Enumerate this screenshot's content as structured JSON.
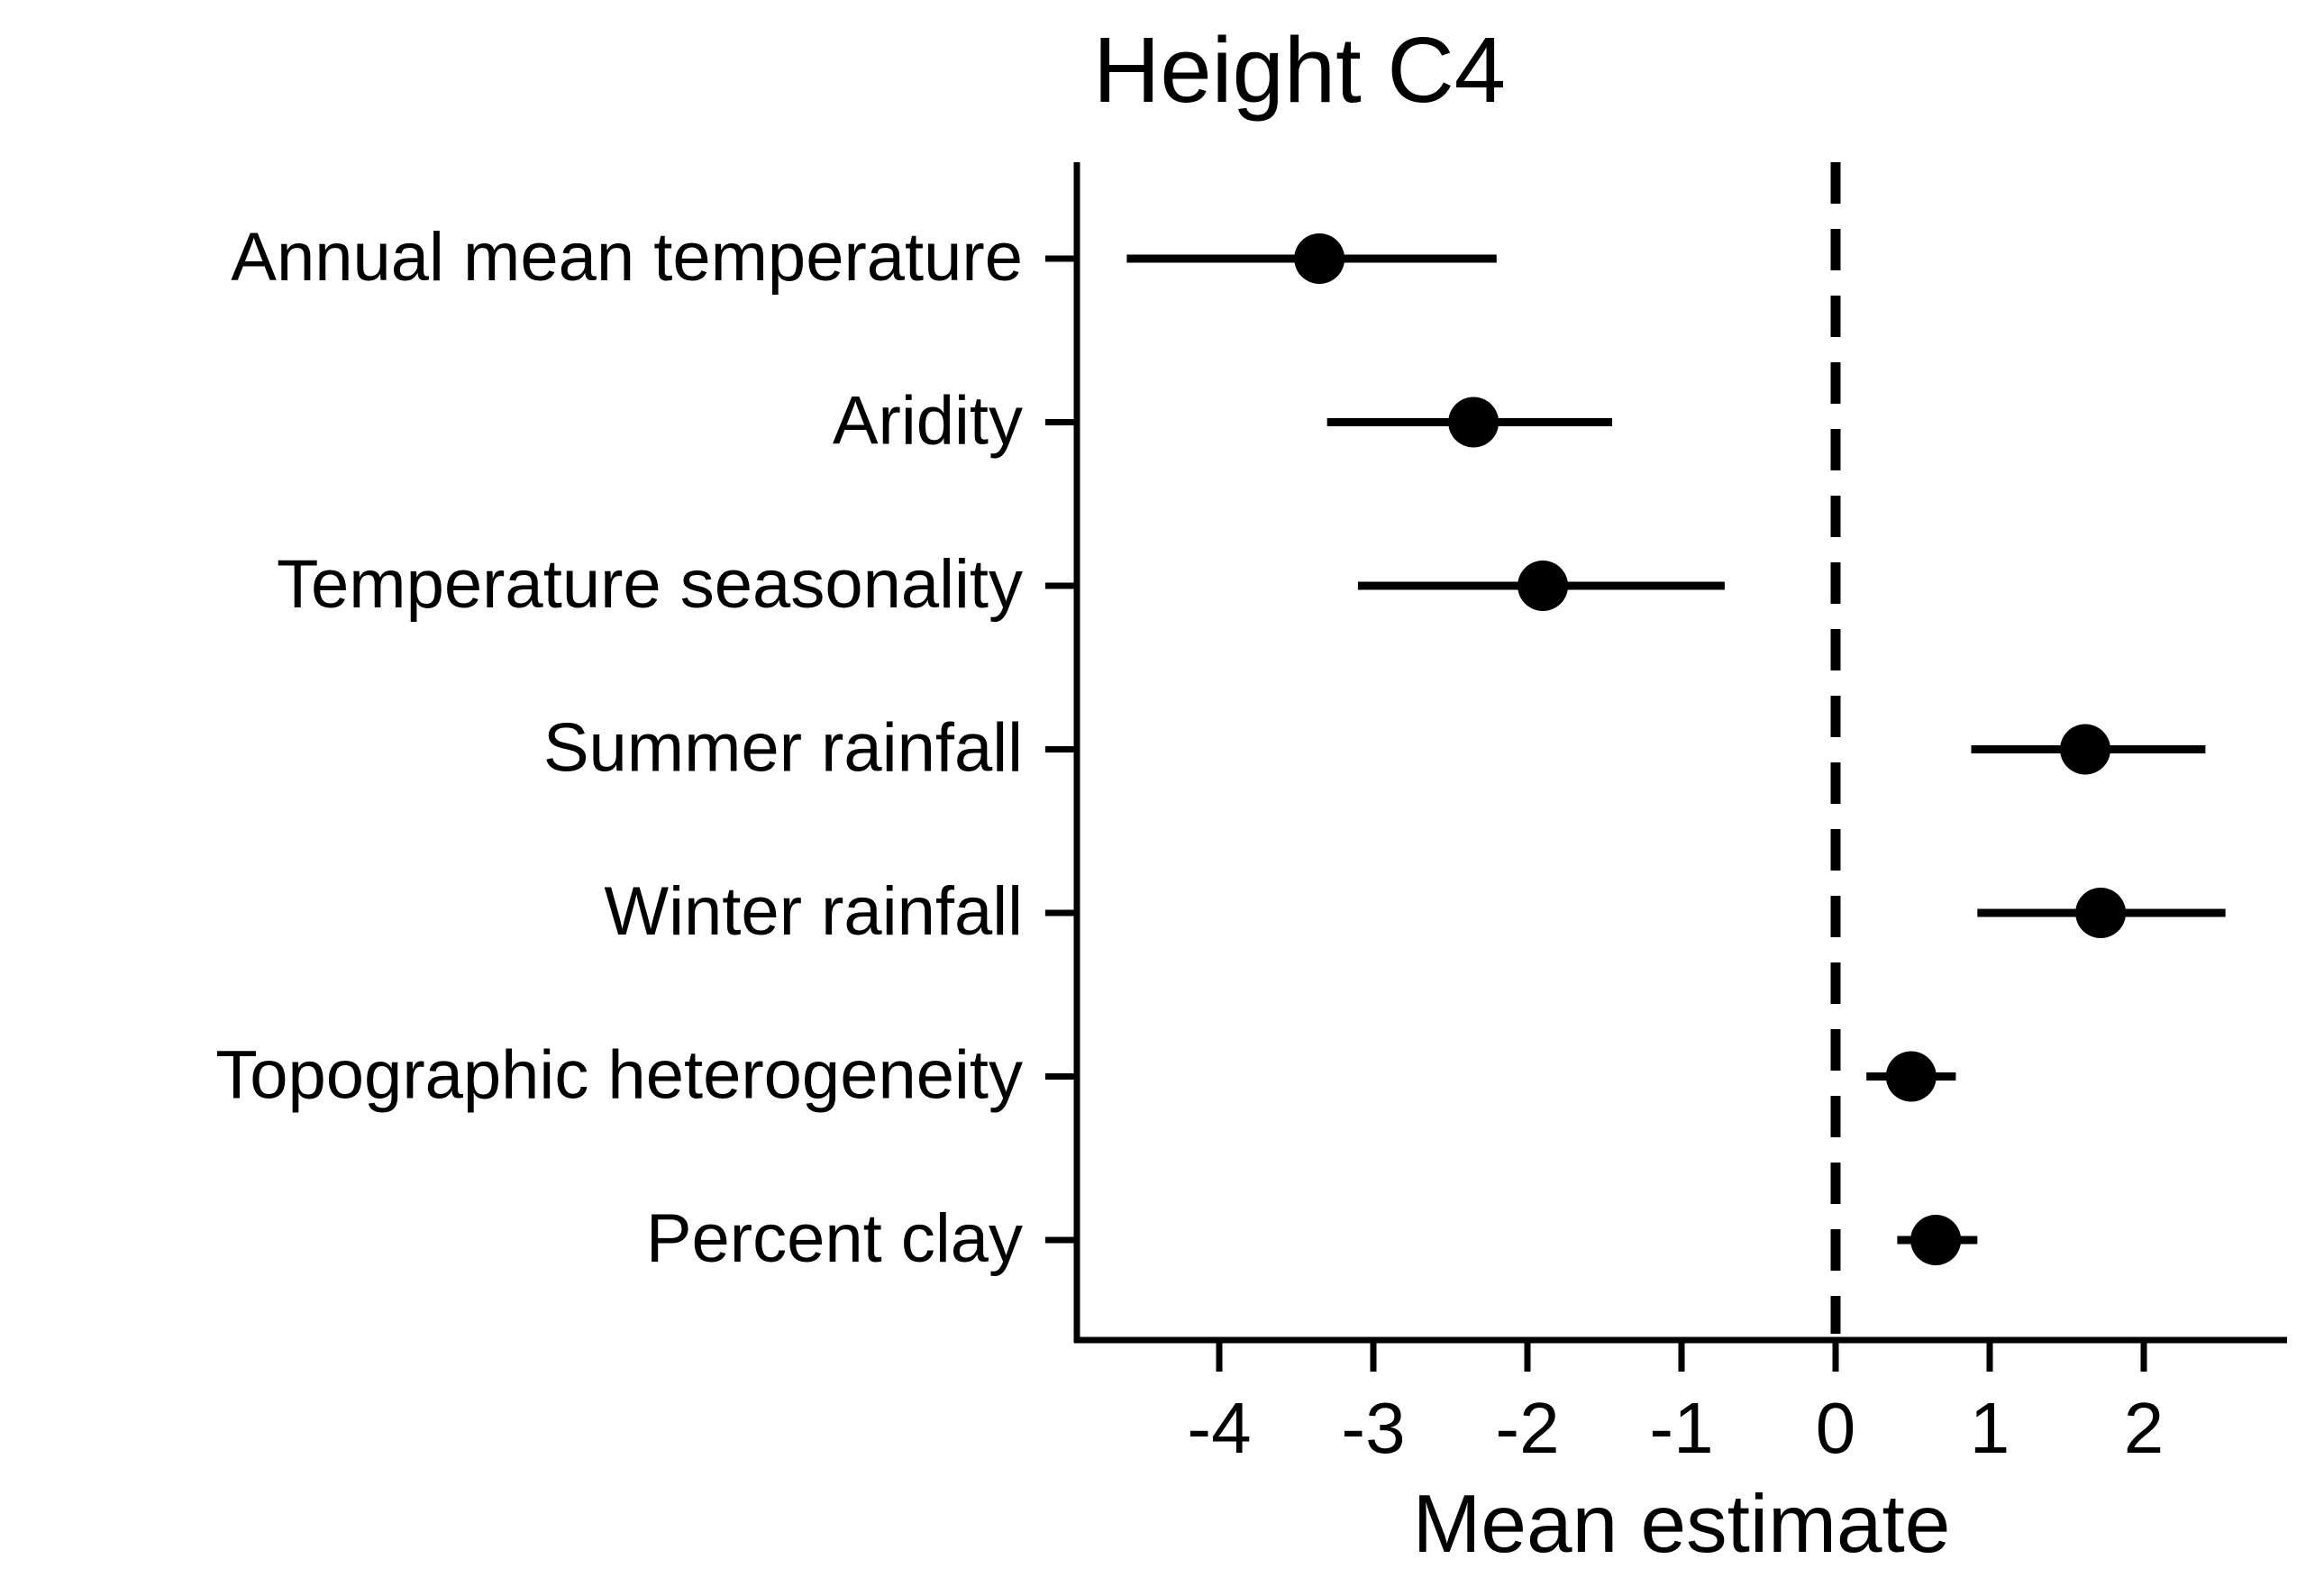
{
  "chart_data": {
    "type": "forest",
    "title": "Height C4",
    "xlabel": "Mean estimate",
    "ylabel": "",
    "xlim": [
      -5.0,
      3.0
    ],
    "x_ticks": [
      -4,
      -3,
      -2,
      -1,
      0,
      1,
      2
    ],
    "x_tick_labels": [
      "-4",
      "-3",
      "-2",
      "-1",
      "0",
      "1",
      "2"
    ],
    "reference_line": {
      "x": 0,
      "style": "dashed"
    },
    "grid": false,
    "legend": "none",
    "categories": [
      "Annual mean temperature",
      "Aridity",
      "Temperature seasonality",
      "Summer rainfall",
      "Winter rainfall",
      "Topographic heterogeneity",
      "Percent clay"
    ],
    "estimates": [
      -3.35,
      -2.35,
      -1.9,
      1.62,
      1.72,
      0.49,
      0.65
    ],
    "lower": [
      -4.6,
      -3.3,
      -3.1,
      0.88,
      0.92,
      0.2,
      0.4
    ],
    "upper": [
      -2.2,
      -1.45,
      -0.72,
      2.4,
      2.53,
      0.78,
      0.92
    ],
    "colors": {
      "marker": "#000000",
      "axis": "#000000"
    }
  }
}
